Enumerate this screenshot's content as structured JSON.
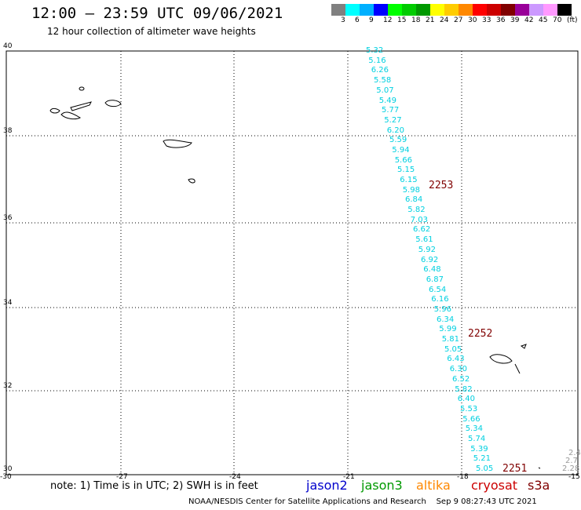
{
  "header": {
    "title": "12:00 – 23:59 UTC 09/06/2021",
    "subtitle": "12 hour collection of altimeter wave heights"
  },
  "legend": {
    "colors": [
      "#808080",
      "#00ffff",
      "#00b0ff",
      "#0000ff",
      "#00ff00",
      "#00cc00",
      "#009900",
      "#ffff00",
      "#ffcc00",
      "#ff8800",
      "#ff0000",
      "#cc0000",
      "#800000",
      "#990099",
      "#cc99ff",
      "#ff99ff",
      "#000000"
    ],
    "labels": [
      "3",
      "6",
      "9",
      "12",
      "15",
      "18",
      "21",
      "24",
      "27",
      "30",
      "33",
      "36",
      "39",
      "42",
      "45",
      "70",
      "(ft)"
    ]
  },
  "axes": {
    "x_ticks": [
      "-30",
      "-27",
      "-24",
      "-21",
      "-18",
      "-15"
    ],
    "y_ticks": [
      "40",
      "38",
      "36",
      "34",
      "32",
      "30"
    ]
  },
  "wave_heights": [
    "5.32",
    "5.16",
    "6.26",
    "5.58",
    "5.07",
    "5.49",
    "5.77",
    "5.27",
    "6.20",
    "5.59",
    "5.94",
    "5.66",
    "5.15",
    "6.15",
    "5.98",
    "6.84",
    "5.82",
    "7.03",
    "6.62",
    "5.61",
    "5.92",
    "6.92",
    "6.48",
    "6.87",
    "6.54",
    "6.16",
    "5.96",
    "6.34",
    "5.99",
    "5.81",
    "5.05",
    "6.43",
    "6.30",
    "6.52",
    "5.82",
    "6.40",
    "5.53",
    "5.66",
    "5.34",
    "5.74",
    "5.39",
    "5.21",
    "5.05"
  ],
  "pass_labels": [
    "2253",
    "2252",
    "2251"
  ],
  "edge_values": [
    "2.4",
    "2.7",
    "2.28"
  ],
  "note": "note: 1) Time is in UTC; 2) SWH is in feet",
  "satellites": [
    {
      "name": "jason2",
      "color": "#0000cc"
    },
    {
      "name": "jason3",
      "color": "#009900"
    },
    {
      "name": "altika",
      "color": "#ff8800"
    },
    {
      "name": "cryosat",
      "color": "#cc0000"
    },
    {
      "name": "s3a",
      "color": "#800000"
    }
  ],
  "footer": {
    "credit": "NOAA/NESDIS Center for Satellite Applications and Research",
    "timestamp": "Sep  9 08:27:43 UTC 2021"
  }
}
